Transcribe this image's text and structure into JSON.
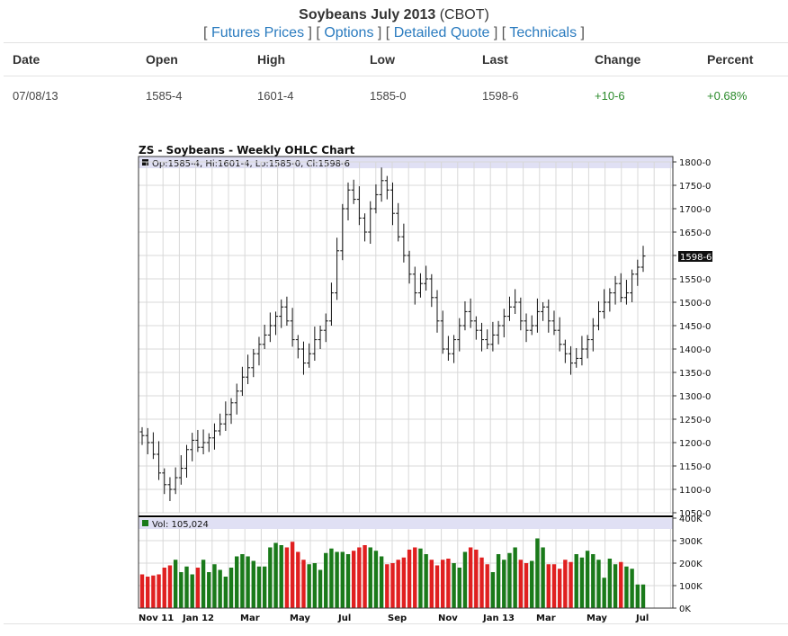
{
  "header": {
    "title_bold": "Soybeans July 2013",
    "title_suffix": "(CBOT)",
    "links": [
      "Futures Prices",
      "Options",
      "Detailed Quote",
      "Technicals"
    ]
  },
  "quote_table": {
    "columns": [
      "Date",
      "Open",
      "High",
      "Low",
      "Last",
      "Change",
      "Percent"
    ],
    "row": [
      "07/08/13",
      "1585-4",
      "1601-4",
      "1585-0",
      "1598-6",
      "+10-6",
      "+0.68%"
    ]
  },
  "chart_data": {
    "type": "ohlc",
    "title": "ZS - Soybeans - Weekly OHLC Chart",
    "legend": "Op:1585-4, Hi:1601-4, Lo:1585-0, Cl:1598-6",
    "volume_legend": "Vol: 105,024",
    "last_price_label": "1598-6",
    "price_axis": {
      "min": 1050,
      "max": 1800,
      "ticks": [
        "1800-0",
        "1750-0",
        "1700-0",
        "1650-0",
        "1600-0",
        "1550-0",
        "1500-0",
        "1450-0",
        "1400-0",
        "1350-0",
        "1300-0",
        "1250-0",
        "1200-0",
        "1150-0",
        "1100-0",
        "1050-0"
      ]
    },
    "volume_axis": {
      "min": 0,
      "max": 400000,
      "ticks": [
        "400K",
        "300K",
        "200K",
        "100K",
        "0K"
      ]
    },
    "x_labels": [
      "Nov 11",
      "Jan 12",
      "Mar",
      "May",
      "Jul",
      "Sep",
      "Nov",
      "Jan 13",
      "Mar",
      "May",
      "Jul"
    ],
    "colors": {
      "up_volume": "#1a7a1a",
      "down_volume": "#e02020",
      "grid": "#d8d8d8",
      "legend_bg": "#e0e0f4"
    },
    "close": [
      1215,
      1200,
      1175,
      1135,
      1110,
      1100,
      1125,
      1145,
      1185,
      1205,
      1190,
      1200,
      1210,
      1225,
      1240,
      1260,
      1285,
      1310,
      1340,
      1360,
      1390,
      1410,
      1430,
      1450,
      1470,
      1490,
      1460,
      1420,
      1400,
      1370,
      1390,
      1420,
      1440,
      1460,
      1520,
      1610,
      1700,
      1740,
      1720,
      1680,
      1650,
      1700,
      1730,
      1760,
      1740,
      1690,
      1640,
      1600,
      1560,
      1520,
      1540,
      1550,
      1510,
      1460,
      1400,
      1390,
      1420,
      1450,
      1480,
      1460,
      1440,
      1420,
      1410,
      1430,
      1450,
      1470,
      1490,
      1500,
      1460,
      1440,
      1450,
      1480,
      1490,
      1460,
      1440,
      1410,
      1390,
      1370,
      1380,
      1400,
      1420,
      1450,
      1480,
      1500,
      1520,
      1540,
      1510,
      1520,
      1560,
      1575,
      1598.75
    ],
    "volume": [
      150000,
      140000,
      145000,
      150000,
      180000,
      190000,
      215000,
      160000,
      185000,
      150000,
      180000,
      215000,
      160000,
      195000,
      170000,
      140000,
      180000,
      230000,
      240000,
      230000,
      210000,
      185000,
      185000,
      270000,
      290000,
      280000,
      270000,
      295000,
      250000,
      215000,
      195000,
      200000,
      170000,
      245000,
      265000,
      250000,
      250000,
      240000,
      255000,
      270000,
      280000,
      270000,
      255000,
      230000,
      195000,
      200000,
      215000,
      225000,
      260000,
      270000,
      265000,
      240000,
      215000,
      190000,
      215000,
      220000,
      200000,
      180000,
      250000,
      270000,
      260000,
      225000,
      195000,
      160000,
      240000,
      215000,
      245000,
      270000,
      215000,
      200000,
      210000,
      310000,
      270000,
      195000,
      195000,
      175000,
      215000,
      205000,
      240000,
      225000,
      255000,
      240000,
      215000,
      135000,
      220000,
      195000,
      205000,
      185000,
      175000,
      105000,
      105024
    ]
  }
}
